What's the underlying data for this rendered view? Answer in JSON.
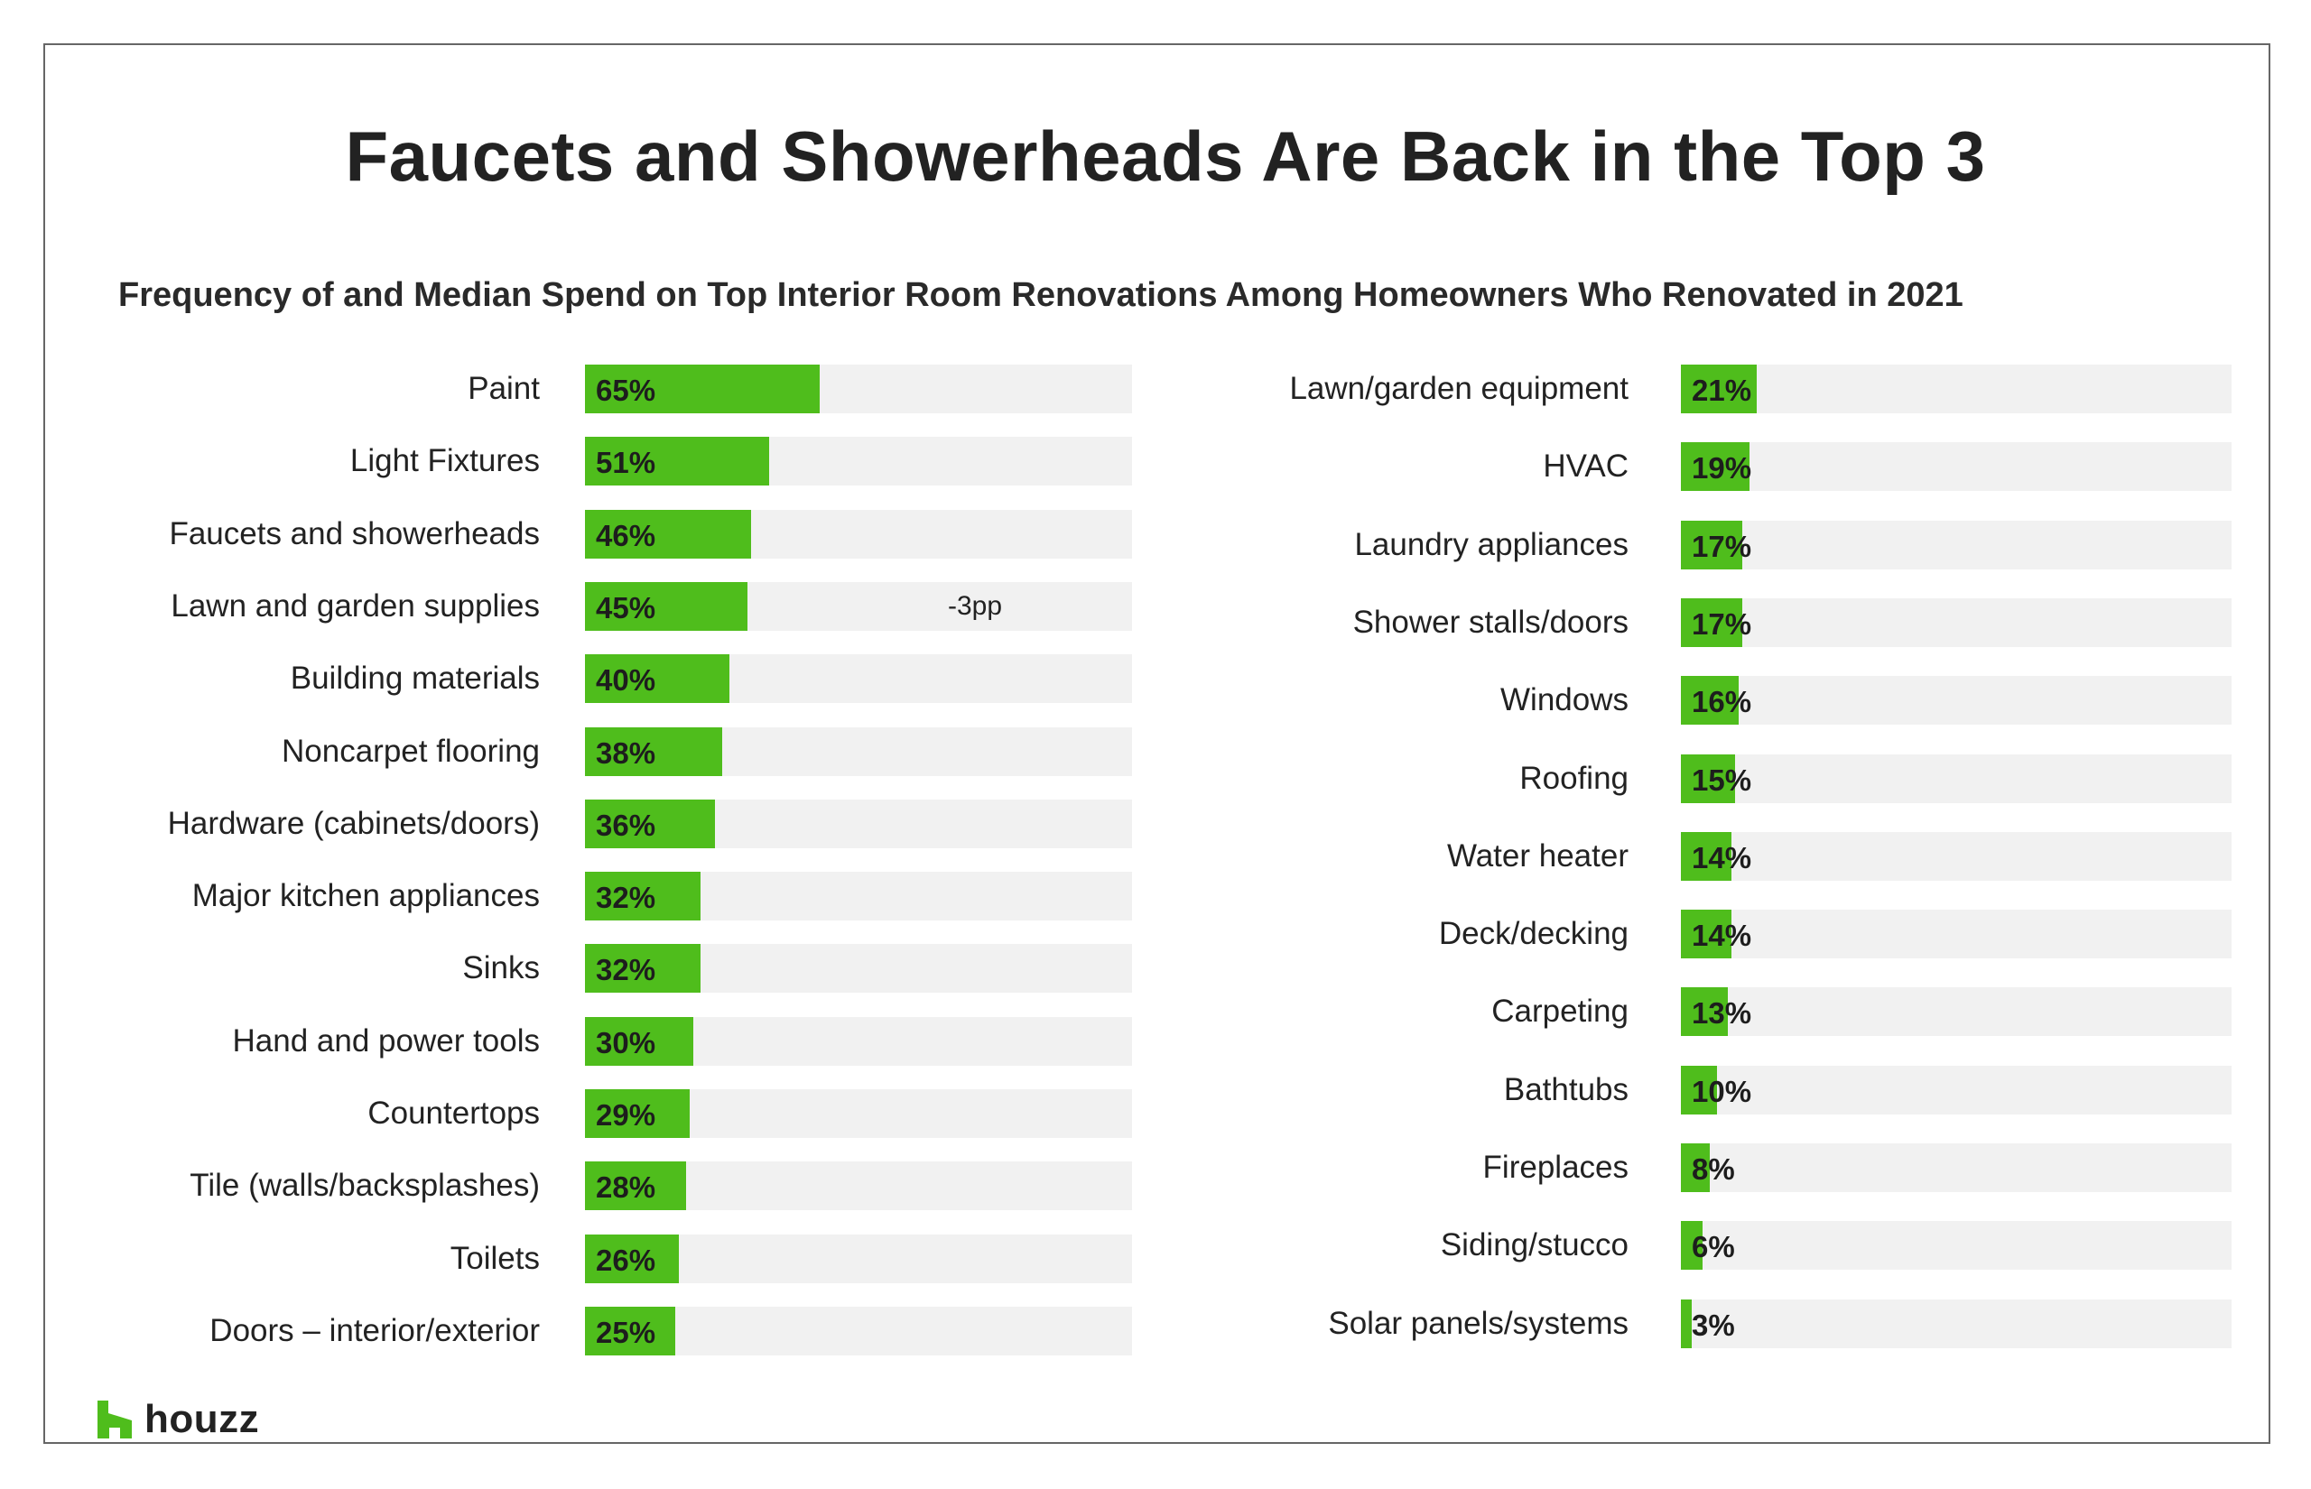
{
  "title": "Faucets and Showerheads Are Back in the Top 3",
  "subtitle": "Frequency of and Median Spend on Top Interior Room Renovations Among Homeowners Who Renovated in 2021",
  "brand": {
    "name": "houzz",
    "icon": "houzz-logo-icon",
    "accent": "#4fbd1c"
  },
  "colors": {
    "bar": "#4fbd1c",
    "track": "#f1f1f1"
  },
  "chart_data": [
    {
      "type": "bar",
      "orientation": "horizontal",
      "title": "",
      "xlabel": "",
      "ylabel": "",
      "xlim": [
        0,
        100
      ],
      "unit": "%",
      "categories": [
        "Paint",
        "Light Fixtures",
        "Faucets and showerheads",
        "Lawn and garden supplies",
        "Building materials",
        "Noncarpet flooring",
        "Hardware (cabinets/doors)",
        "Major kitchen appliances",
        "Sinks",
        "Hand and power tools",
        "Countertops",
        "Tile (walls/backsplashes)",
        "Toilets",
        "Doors – interior/exterior"
      ],
      "values": [
        65,
        51,
        46,
        45,
        40,
        38,
        36,
        32,
        32,
        30,
        29,
        28,
        26,
        25
      ],
      "labels": [
        "65%",
        "51%",
        "46%",
        "45%",
        "40%",
        "38%",
        "36%",
        "32%",
        "32%",
        "30%",
        "29%",
        "28%",
        "26%",
        "25%"
      ],
      "annotations": [
        {
          "category": "Lawn and garden supplies",
          "text": "-3pp"
        }
      ]
    },
    {
      "type": "bar",
      "orientation": "horizontal",
      "title": "",
      "xlabel": "",
      "ylabel": "",
      "xlim": [
        0,
        100
      ],
      "unit": "%",
      "categories": [
        "Lawn/garden equipment",
        "HVAC",
        "Laundry appliances",
        "Shower stalls/doors",
        "Windows",
        "Roofing",
        "Water heater",
        "Deck/decking",
        "Carpeting",
        "Bathtubs",
        "Fireplaces",
        "Siding/stucco",
        "Solar panels/systems"
      ],
      "values": [
        21,
        19,
        17,
        17,
        16,
        15,
        14,
        14,
        13,
        10,
        8,
        6,
        3
      ],
      "labels": [
        "21%",
        "19%",
        "17%",
        "17%",
        "16%",
        "15%",
        "14%",
        "14%",
        "13%",
        "10%",
        "8%",
        "6%",
        "3%"
      ],
      "annotations": []
    }
  ]
}
